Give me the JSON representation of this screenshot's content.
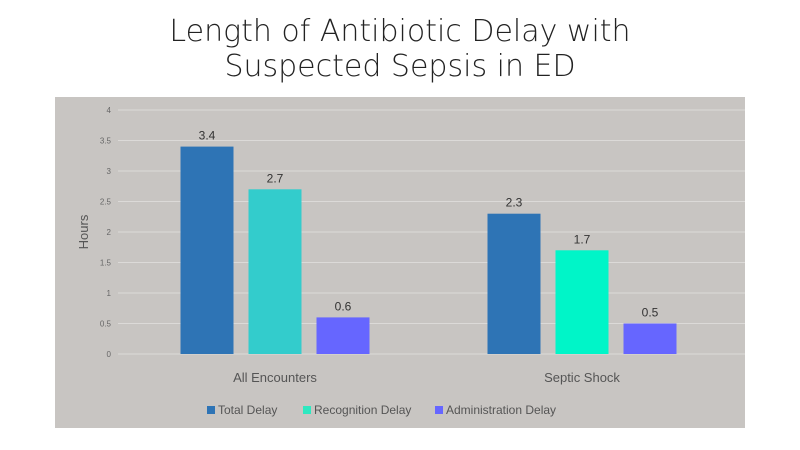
{
  "chart_data": {
    "type": "bar",
    "title_lines": [
      "Length of Antibiotic Delay with",
      "Suspected Sepsis in ED"
    ],
    "categories": [
      "All Encounters",
      "Septic Shock"
    ],
    "series": [
      {
        "name": "Total Delay",
        "values": [
          3.4,
          2.3
        ],
        "labels": [
          "3.4",
          "2.3"
        ],
        "color": "#2e74b5",
        "point_colors": [
          "#2e74b5",
          "#2e74b5"
        ]
      },
      {
        "name": "Recognition Delay",
        "values": [
          2.7,
          1.7
        ],
        "labels": [
          "2.7",
          "1.7"
        ],
        "color": "#2ee8c0",
        "point_colors": [
          "#33cccc",
          "#00f5c8"
        ]
      },
      {
        "name": "Administration Delay",
        "values": [
          0.6,
          0.5
        ],
        "labels": [
          "0.6",
          "0.5"
        ],
        "color": "#6666ff",
        "point_colors": [
          "#6666ff",
          "#6666ff"
        ]
      }
    ],
    "ylabel": "Hours",
    "xlabel": "",
    "ylim": [
      0,
      4
    ],
    "yticks": [
      "0",
      "0.5",
      "1",
      "1.5",
      "2",
      "2.5",
      "3",
      "3.5",
      "4"
    ],
    "grid": true,
    "legend": "bottom"
  }
}
